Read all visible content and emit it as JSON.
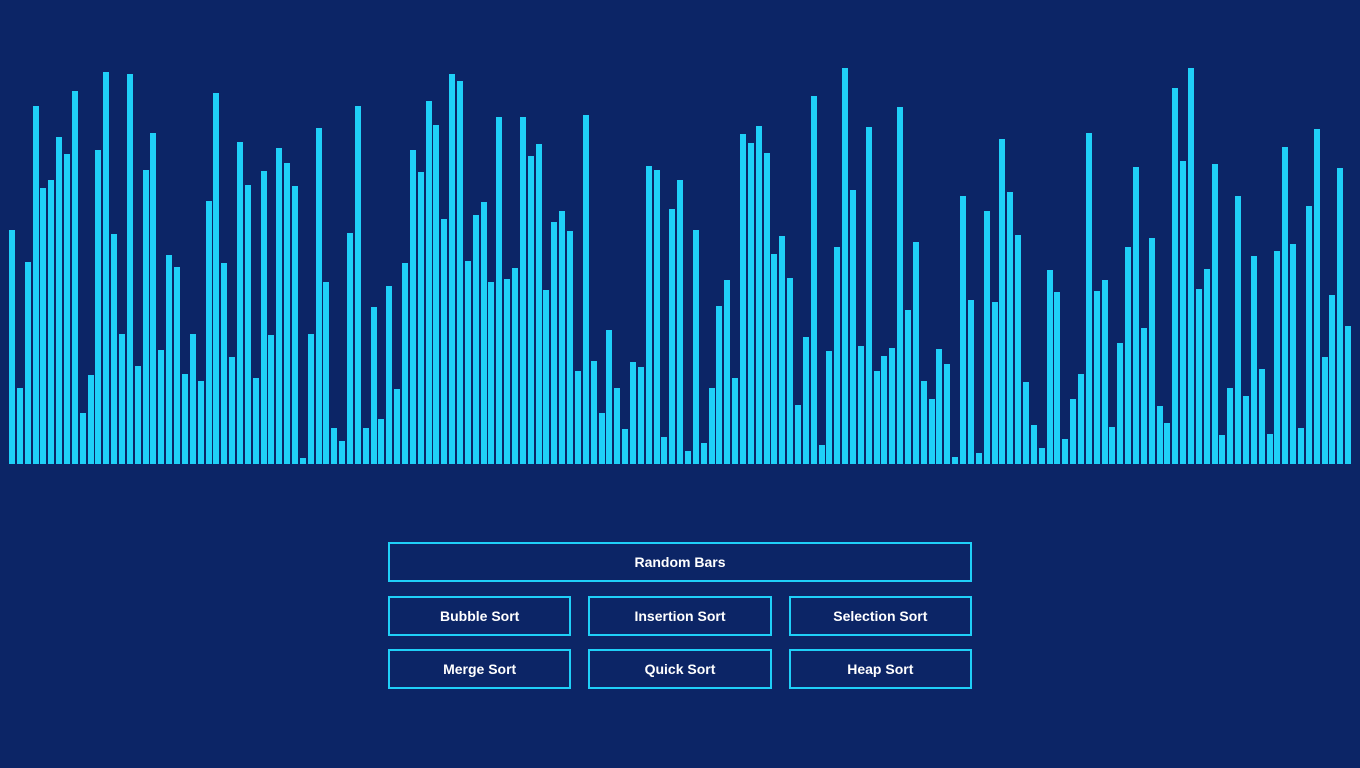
{
  "buttons": {
    "random": "Random Bars",
    "bubble": "Bubble Sort",
    "insertion": "Insertion Sort",
    "selection": "Selection Sort",
    "merge": "Merge Sort",
    "quick": "Quick Sort",
    "heap": "Heap Sort"
  },
  "colors": {
    "background": "#0c2566",
    "accent": "#1fd0f8",
    "text": "#ffffff"
  },
  "bars": {
    "max_value": 400,
    "values": [
      234,
      76,
      202,
      358,
      276,
      284,
      327,
      310,
      373,
      51,
      89,
      314,
      392,
      230,
      130,
      390,
      98,
      294,
      331,
      114,
      209,
      197,
      90,
      130,
      83,
      263,
      371,
      201,
      107,
      322,
      279,
      86,
      293,
      129,
      316,
      301,
      278,
      6,
      130,
      336,
      182,
      36,
      23,
      231,
      358,
      36,
      157,
      45,
      178,
      75,
      201,
      314,
      292,
      363,
      339,
      245,
      390,
      383,
      203,
      249,
      262,
      182,
      347,
      185,
      196,
      347,
      308,
      320,
      174,
      242,
      253,
      233,
      93,
      349,
      103,
      51,
      134,
      76,
      35,
      102,
      97,
      298,
      294,
      27,
      255,
      284,
      13,
      234,
      21,
      76,
      158,
      184,
      86,
      330,
      321,
      338,
      311,
      210,
      228,
      186,
      59,
      127,
      368,
      19,
      113,
      217,
      396,
      274,
      118,
      337,
      93,
      108,
      116,
      357,
      154,
      222,
      83,
      65,
      115,
      100,
      7,
      268,
      164,
      11,
      253,
      162,
      325,
      272,
      229,
      82,
      39,
      16,
      194,
      172,
      25,
      65,
      90,
      331,
      173,
      184,
      37,
      121,
      217,
      297,
      136,
      226,
      58,
      41,
      376,
      303,
      396,
      175,
      195,
      300,
      29,
      76,
      268,
      68,
      208,
      95,
      30,
      213,
      317,
      220,
      36,
      258,
      335,
      107,
      169,
      296,
      138
    ]
  }
}
